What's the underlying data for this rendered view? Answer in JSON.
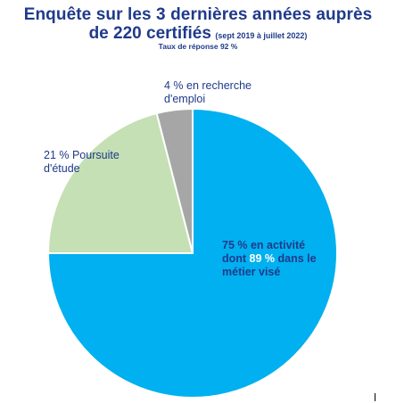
{
  "title": {
    "line1": "Enquête sur les 3 dernières années auprès",
    "line2_main": "de 220 certifiés",
    "line2_sub": "(sept 2019 à juillet 2022)",
    "line3": "Taux de réponse 92 %"
  },
  "labels": {
    "emploi_line1": "4 % en recherche",
    "emploi_line2": "d'emploi",
    "etude_line1": "21  % Poursuite",
    "etude_line2": "d'étude",
    "activite_line1": "75 % en activité",
    "activite_line2_a": "dont ",
    "activite_line2_b": "89 %",
    "activite_line2_c": " dans le",
    "activite_line3": "métier visé"
  },
  "chart_data": {
    "type": "pie",
    "title": "Enquête sur les 3 dernières années auprès de 220 certifiés",
    "slices": [
      {
        "name": "en activité",
        "value": 75,
        "color": "#00b0f0"
      },
      {
        "name": "Poursuite d'étude",
        "value": 21,
        "color": "#c5e0b4"
      },
      {
        "name": "en recherche d'emploi",
        "value": 4,
        "color": "#a6a6a6"
      }
    ],
    "start": "top",
    "direction": "clockwise"
  }
}
